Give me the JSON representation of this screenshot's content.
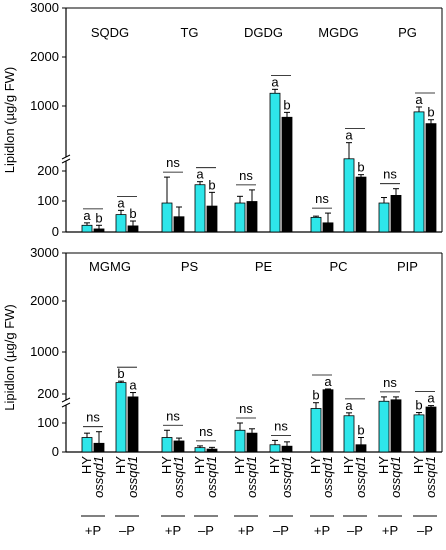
{
  "colors": {
    "hy": "#2ee6ea",
    "mutant": "#000000",
    "axis": "#000000"
  },
  "chart_data": {
    "type": "bar",
    "ylabel": "Lipidlon (µg/g FW)",
    "ytick_labels": [
      "0",
      "100",
      "200",
      "1000",
      "2000",
      "3000"
    ],
    "ylim": [
      0,
      3000
    ],
    "axis_break": [
      250,
      300
    ],
    "genotypes": [
      "HY",
      "ossqd1"
    ],
    "conditions": [
      "+P",
      "–P"
    ],
    "panels": [
      {
        "name": "top",
        "lipids": [
          {
            "name": "SQDG",
            "groups": [
              {
                "cond": "+P",
                "values": [
                  22,
                  10
                ],
                "errors": [
                  8,
                  12
                ],
                "letters": [
                  "a",
                  "b"
                ],
                "bracket": true
              },
              {
                "cond": "–P",
                "values": [
                  57,
                  20
                ],
                "errors": [
                  14,
                  16
                ],
                "letters": [
                  "a",
                  "b"
                ],
                "bracket": true
              }
            ]
          },
          {
            "name": "TG",
            "groups": [
              {
                "cond": "+P",
                "values": [
                  95,
                  50
                ],
                "errors": [
                  85,
                  32
                ],
                "letters": [
                  "ns",
                  ""
                ],
                "bracket": false
              },
              {
                "cond": "–P",
                "values": [
                  155,
                  85
                ],
                "errors": [
                  10,
                  45
                ],
                "letters": [
                  "a",
                  "b"
                ],
                "bracket": true
              }
            ]
          },
          {
            "name": "DGDG",
            "groups": [
              {
                "cond": "+P",
                "values": [
                  95,
                  100
                ],
                "errors": [
                  22,
                  38
                ],
                "letters": [
                  "ns",
                  ""
                ],
                "bracket": false
              },
              {
                "cond": "–P",
                "values": [
                  1260,
                  770
                ],
                "errors": [
                  80,
                  100
                ],
                "letters": [
                  "a",
                  "b"
                ],
                "bracket": true
              }
            ]
          },
          {
            "name": "MGDG",
            "groups": [
              {
                "cond": "+P",
                "values": [
                  48,
                  30
                ],
                "errors": [
                  4,
                  32
                ],
                "letters": [
                  "ns",
                  ""
                ],
                "bracket": false
              },
              {
                "cond": "–P",
                "values": [
                  240,
                  180
                ],
                "errors": [
                  12,
                  8
                ],
                "letters": [
                  "a",
                  "b"
                ],
                "bracket": true
              }
            ]
          },
          {
            "name": "PG",
            "groups": [
              {
                "cond": "+P",
                "values": [
                  95,
                  120
                ],
                "errors": [
                  18,
                  22
                ],
                "letters": [
                  "ns",
                  ""
                ],
                "bracket": false
              },
              {
                "cond": "–P",
                "values": [
                  880,
                  640
                ],
                "errors": [
                  100,
                  80
                ],
                "letters": [
                  "a",
                  "b"
                ],
                "bracket": true
              }
            ]
          }
        ]
      },
      {
        "name": "bottom",
        "lipids": [
          {
            "name": "MGMG",
            "groups": [
              {
                "cond": "+P",
                "values": [
                  50,
                  30
                ],
                "errors": [
                  15,
                  40
                ],
                "letters": [
                  "ns",
                  ""
                ],
                "bracket": false
              },
              {
                "cond": "–P",
                "values": [
                  400,
                  190
                ],
                "errors": [
                  28,
                  15
                ],
                "letters": [
                  "b",
                  "a"
                ],
                "bracket": true
              }
            ]
          },
          {
            "name": "PS",
            "groups": [
              {
                "cond": "+P",
                "values": [
                  50,
                  38
                ],
                "errors": [
                  25,
                  10
                ],
                "letters": [
                  "ns",
                  ""
                ],
                "bracket": false
              },
              {
                "cond": "–P",
                "values": [
                  15,
                  10
                ],
                "errors": [
                  6,
                  6
                ],
                "letters": [
                  "ns",
                  ""
                ],
                "bracket": false
              }
            ]
          },
          {
            "name": "PE",
            "groups": [
              {
                "cond": "+P",
                "values": [
                  75,
                  65
                ],
                "errors": [
                  25,
                  15
                ],
                "letters": [
                  "ns",
                  ""
                ],
                "bracket": false
              },
              {
                "cond": "–P",
                "values": [
                  25,
                  20
                ],
                "errors": [
                  15,
                  15
                ],
                "letters": [
                  "ns",
                  ""
                ],
                "bracket": false
              }
            ]
          },
          {
            "name": "PC",
            "groups": [
              {
                "cond": "+P",
                "values": [
                  150,
                  260
                ],
                "errors": [
                  20,
                  15
                ],
                "letters": [
                  "b",
                  "a"
                ],
                "bracket": true
              },
              {
                "cond": "–P",
                "values": [
                  125,
                  25
                ],
                "errors": [
                  10,
                  25
                ],
                "letters": [
                  "a",
                  "b"
                ],
                "bracket": true
              }
            ]
          },
          {
            "name": "PIP",
            "groups": [
              {
                "cond": "+P",
                "values": [
                  175,
                  180
                ],
                "errors": [
                  15,
                  10
                ],
                "letters": [
                  "ns",
                  ""
                ],
                "bracket": false
              },
              {
                "cond": "–P",
                "values": [
                  128,
                  155
                ],
                "errors": [
                  8,
                  5
                ],
                "letters": [
                  "b",
                  "a"
                ],
                "bracket": true
              }
            ]
          }
        ]
      }
    ]
  }
}
